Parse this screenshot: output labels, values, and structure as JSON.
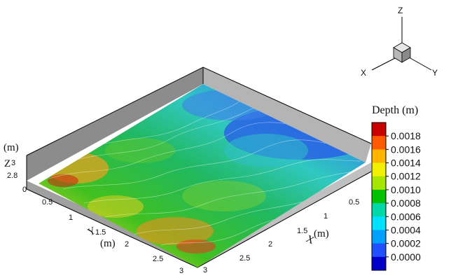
{
  "figure": {
    "legend": {
      "title": "Depth (m)",
      "ticks": [
        "0.0018",
        "0.0016",
        "0.0014",
        "0.0012",
        "0.0010",
        "0.0008",
        "0.0006",
        "0.0004",
        "0.0002",
        "0.0000"
      ],
      "colors": [
        "#c80000",
        "#ff5a00",
        "#ffb400",
        "#f0f000",
        "#a6e600",
        "#00c000",
        "#00d8a8",
        "#00e0ff",
        "#00a0ff",
        "#2050ff",
        "#0000c8"
      ]
    },
    "axes": {
      "z_unit": "(m)",
      "z_label": "Z",
      "z_ticks": [
        "3",
        "2.8"
      ],
      "y_label": "Y",
      "y_unit": "(m)",
      "y_ticks": [
        "0",
        "0.5",
        "1",
        "1.5",
        "2",
        "2.5",
        "3"
      ],
      "x_label": "X",
      "x_unit": "(m)",
      "x_ticks": [
        "0.5",
        "1",
        "1.5",
        "2",
        "2.5",
        "3"
      ]
    },
    "triad": {
      "z": "Z",
      "x": "X",
      "y": "Y"
    }
  }
}
